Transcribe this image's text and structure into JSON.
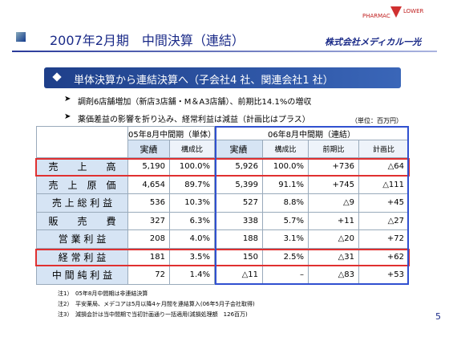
{
  "header": {
    "title": "2007年2月期　中間決算（連結）",
    "logo_left": "PHARMAC",
    "logo_right": "LOWER",
    "company": "株式会社メディカル一光"
  },
  "banner": "単体決算から連結決算へ（子会社4 社、関連会社1 社）",
  "bullets": [
    "調剤6店舗増加（新店3店舗・M＆A3店舗）、前期比14.1%の増収",
    "薬価差益の影響を折り込み、経常利益は減益（計画比はプラス）"
  ],
  "unit": "（単位：百万円）",
  "table": {
    "groups": [
      "05年8月中間期（単体）",
      "06年8月中間期（連結）"
    ],
    "columns": [
      "実績",
      "構成比",
      "実績",
      "構成比",
      "前期比",
      "計画比"
    ],
    "rows": [
      [
        "売　　上　　高",
        "5,190",
        "100.0%",
        "5,926",
        "100.0%",
        "+736",
        "△64"
      ],
      [
        "売　上　原　価",
        "4,654",
        "89.7%",
        "5,399",
        "91.1%",
        "+745",
        "△111"
      ],
      [
        "売 上 総 利 益",
        "536",
        "10.3%",
        "527",
        "8.8%",
        "△9",
        "+45"
      ],
      [
        "販　　売　　費",
        "327",
        "6.3%",
        "338",
        "5.7%",
        "+11",
        "△27"
      ],
      [
        "営 業 利 益",
        "208",
        "4.0%",
        "188",
        "3.1%",
        "△20",
        "+72"
      ],
      [
        "経 常 利 益",
        "181",
        "3.5%",
        "150",
        "2.5%",
        "△31",
        "+62"
      ],
      [
        "中 間 純 利 益",
        "72",
        "1.4%",
        "△11",
        "–",
        "△83",
        "+53"
      ]
    ]
  },
  "notes": [
    "注1）　05年8月中間期は非連結決算",
    "注2）　平安薬局、メデコアは5月以降4ヶ月間を連結算入(06年5月子会社取得)",
    "注3）　減損会計は当中間期で当初計画通り一括適用(減損処理額　126百万)"
  ],
  "page_number": "5"
}
